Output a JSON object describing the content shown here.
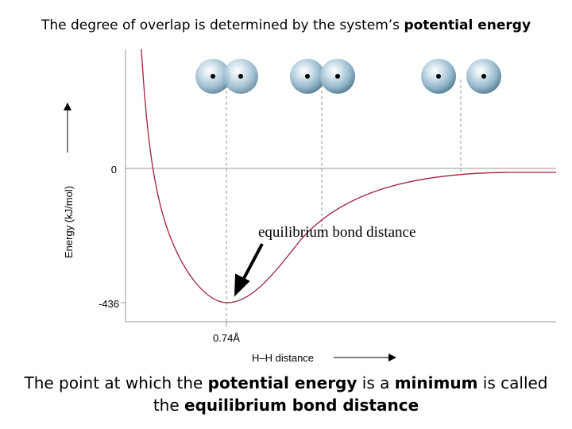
{
  "title": {
    "prefix": "The degree of overlap is determined by the system’s ",
    "emphasis": "potential energy"
  },
  "chart_data": {
    "type": "line",
    "xlabel": "H–H distance",
    "ylabel": "Energy (kJ/mol)",
    "y_ticks": [
      "0",
      "-436"
    ],
    "x_ticks": [
      "0.74Å"
    ],
    "annotation": "equilibrium bond distance",
    "curve": "potential energy vs. H–H distance; minimum of -436 kJ/mol at 0.74 Å, approaching 0 at large separation",
    "colors": {
      "curve": "#a0203a",
      "atom": "#8fb4c8",
      "grid": "#999999"
    }
  },
  "caption": {
    "line1_prefix": "The point at which the ",
    "line1_em1": "potential energy",
    "line1_mid": " is a ",
    "line1_em2": "minimum",
    "line1_suffix": " is called",
    "line2_prefix": "the ",
    "line2_em": "equilibrium bond distance"
  }
}
